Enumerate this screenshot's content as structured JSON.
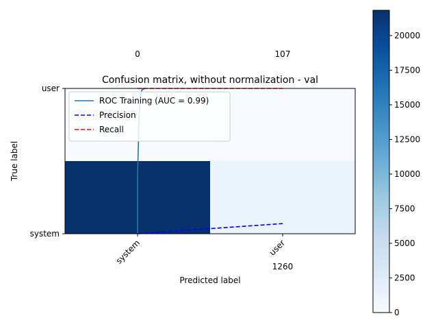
{
  "chart_data": {
    "type": "heatmap",
    "title": "Confusion matrix, without normalization - val",
    "xlabel": "Predicted label",
    "ylabel": "True label",
    "x_categories": [
      "system",
      "user"
    ],
    "y_categories": [
      "user",
      "system"
    ],
    "matrix": [
      [
        0,
        107
      ],
      [
        21825,
        1260
      ]
    ],
    "colormap": "Blues",
    "colorbar": {
      "min": 0,
      "max": 21825,
      "ticks": [
        0,
        2500,
        5000,
        7500,
        10000,
        12500,
        15000,
        17500,
        20000
      ],
      "tick_labels": [
        "0",
        "2500",
        "5000",
        "7500",
        "10000",
        "12500",
        "15000",
        "17500",
        "20000"
      ]
    },
    "overlay_lines": [
      {
        "name": "ROC Training (AUC = 0.99)",
        "style": "solid",
        "color": "#1f77b4",
        "x": [
          0.0,
          0.0,
          0.005,
          0.01,
          0.02,
          0.03,
          0.05
        ],
        "y": [
          0.0,
          0.4,
          0.6,
          0.8,
          0.95,
          0.99,
          1.0
        ]
      },
      {
        "name": "Precision",
        "style": "dashed",
        "color": "#0000ff",
        "x": [
          0.0,
          1.0
        ],
        "y": [
          0.0,
          0.07
        ]
      },
      {
        "name": "Recall",
        "style": "dashed",
        "color": "#ff0000",
        "x": [
          0.0,
          1.0
        ],
        "y": [
          1.0,
          1.0
        ]
      }
    ],
    "legend_position": "upper-left"
  }
}
